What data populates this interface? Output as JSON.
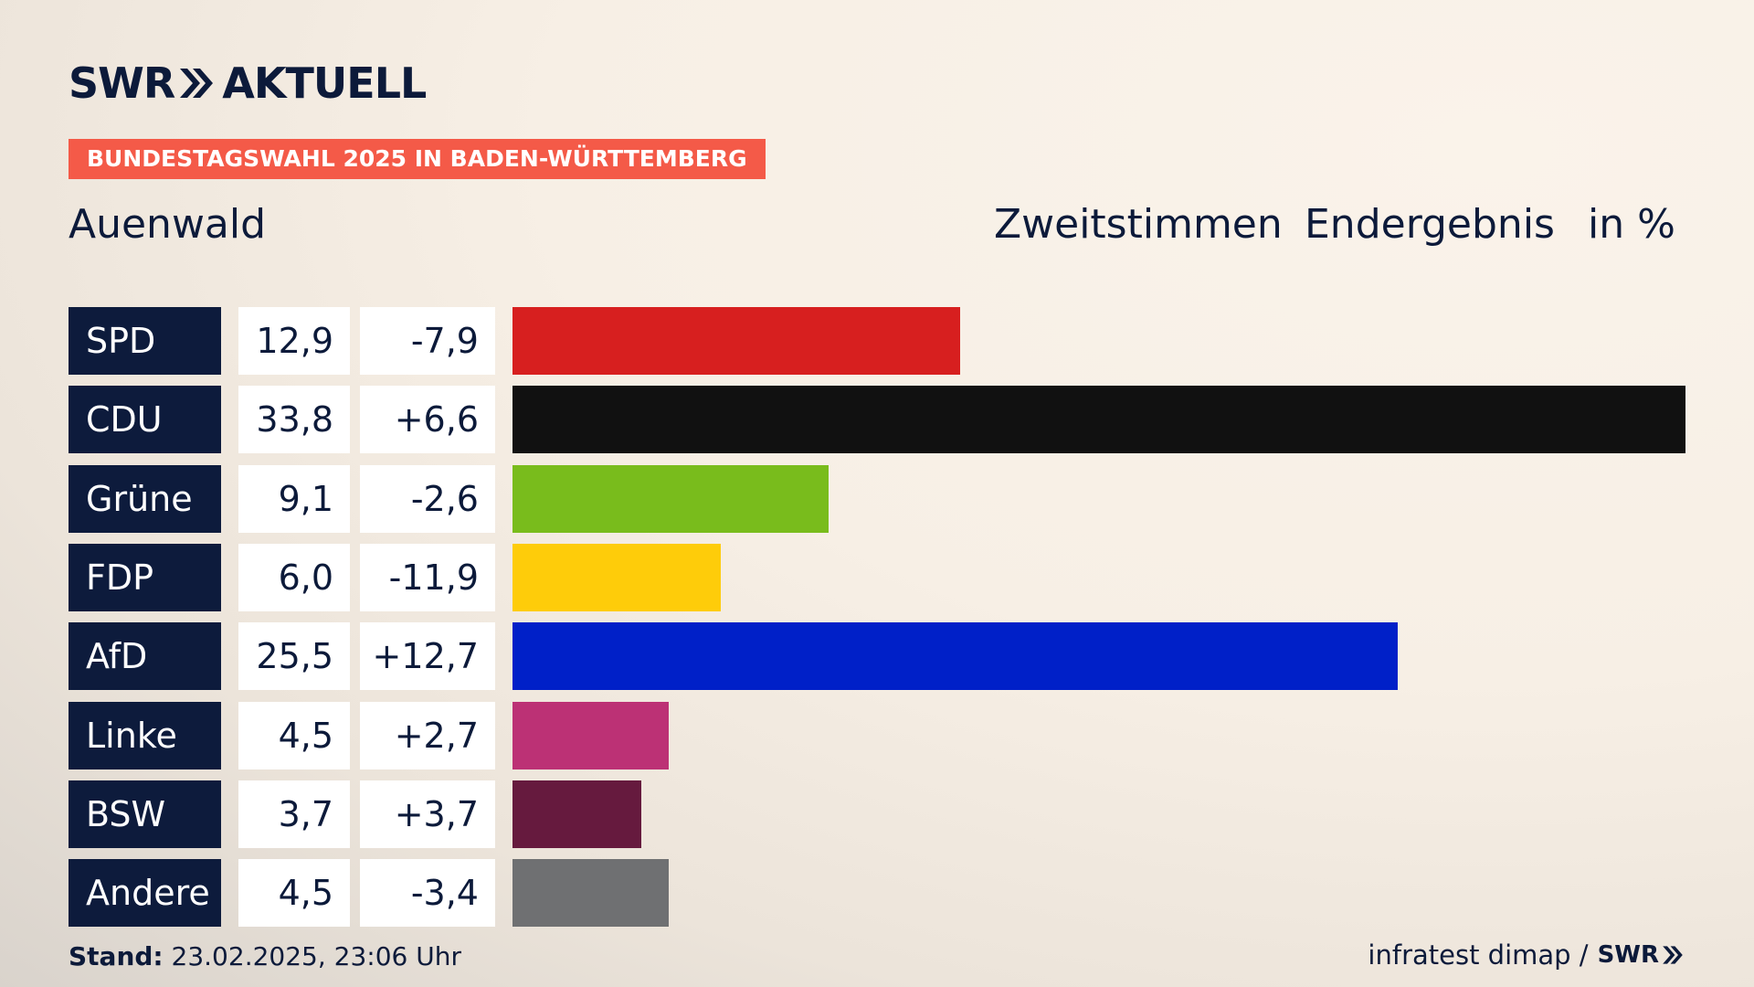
{
  "brand": {
    "left": "SWR",
    "right": "AKTUELL"
  },
  "banner": "BUNDESTAGSWAHL 2025 IN BADEN-WÜRTTEMBERG",
  "location": "Auenwald",
  "header": {
    "vote": "Zweitstimmen",
    "status": "Endergebnis",
    "unit": "in %"
  },
  "chart_data": {
    "type": "bar",
    "categories": [
      "SPD",
      "CDU",
      "Grüne",
      "FDP",
      "AfD",
      "Linke",
      "BSW",
      "Andere"
    ],
    "values": [
      12.9,
      33.8,
      9.1,
      6.0,
      25.5,
      4.5,
      3.7,
      4.5
    ],
    "value_labels": [
      "12,9",
      "33,8",
      "9,1",
      "6,0",
      "25,5",
      "4,5",
      "3,7",
      "4,5"
    ],
    "diff_labels": [
      "-7,9",
      "+6,6",
      "-2,6",
      "-11,9",
      "+12,7",
      "+2,7",
      "+3,7",
      "-3,4"
    ],
    "colors": [
      "#d71f1f",
      "#111111",
      "#79bc1c",
      "#fecc0a",
      "#0020c8",
      "#bc3175",
      "#661a3e",
      "#6f7072"
    ],
    "orientation": "horizontal",
    "xlim": [
      0,
      33.8
    ]
  },
  "footer": {
    "stand_label": "Stand:",
    "stand_value": "23.02.2025, 23:06 Uhr",
    "source": "infratest dimap /",
    "source_brand": "SWR"
  }
}
